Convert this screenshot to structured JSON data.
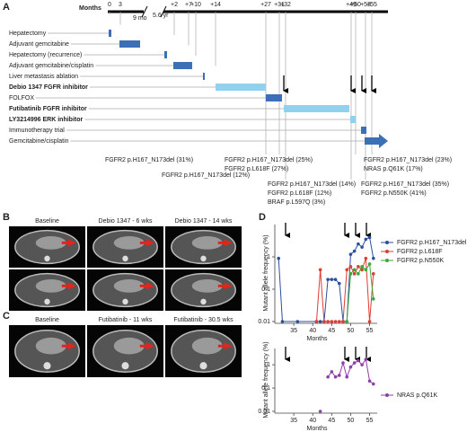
{
  "panel_a": {
    "label": "A",
    "axis_label": "Months",
    "ticks": [
      "0",
      "3",
      "+2",
      "+7",
      "+10",
      "+14",
      "+27",
      "+31",
      "+32",
      "+49",
      "+50",
      "+53",
      "+55"
    ],
    "gaps": [
      "9 mo",
      "5.6 yr"
    ],
    "treatments": [
      {
        "name": "Hepatectomy",
        "bold": false
      },
      {
        "name": "Adjuvant gemcitabine",
        "bold": false
      },
      {
        "name": "Hepatectomy (recurrence)",
        "bold": false
      },
      {
        "name": "Adjuvant gemcitabine/cisplatin",
        "bold": false
      },
      {
        "name": "Liver metastasis ablation",
        "bold": false
      },
      {
        "name": "Debio 1347 FGFR inhibitor",
        "bold": true
      },
      {
        "name": "FOLFOX",
        "bold": false
      },
      {
        "name": "Futibatinib FGFR inhibitor",
        "bold": true
      },
      {
        "name": "LY3214996 ERK inhibitor",
        "bold": true
      },
      {
        "name": "Immunotherapy trial",
        "bold": false
      },
      {
        "name": "Gemcitabine/cisplatin",
        "bold": false
      }
    ],
    "annotations": [
      [
        "FGFR2 p.H167_N173del (31%)"
      ],
      [
        "FGFR2 p.H167_N173del (12%)"
      ],
      [
        "FGFR2 p.H167_N173del (25%)",
        "FGFR2 p.L618F (27%)"
      ],
      [
        "FGFR2 p.H167_N173del (14%)",
        "FGFR2 p.L618F (12%)",
        "BRAF p.L597Q (3%)"
      ],
      [
        "FGFR2 p.H167_N173del (23%)",
        "NRAS p.Q61K (17%)"
      ],
      [
        "FGFR2 p.H167_N173del (35%)",
        "FGFR2 p.N550K (41%)"
      ]
    ]
  },
  "panel_b": {
    "label": "B",
    "captions": [
      "Baseline",
      "Debio 1347 - 6 wks",
      "Debio 1347 - 14 wks"
    ]
  },
  "panel_c": {
    "label": "C",
    "captions": [
      "Baseline",
      "Futibatinib - 11 wks",
      "Futibatinib - 30.5 wks"
    ]
  },
  "chart_data": [
    {
      "type": "line",
      "panel_label": "D",
      "y_label": "Mutant allele frequency (%)",
      "x_label": "Months",
      "log_y": true,
      "x": [
        31,
        32,
        36,
        41,
        42,
        43,
        44,
        45,
        46,
        47,
        48,
        49,
        50,
        51,
        52,
        53,
        54,
        55,
        56
      ],
      "xlim": [
        30,
        57
      ],
      "xticks": [
        35,
        40,
        45,
        50,
        55
      ],
      "ylim": [
        0.01,
        10
      ],
      "yticks": [
        0.01,
        0.1,
        1
      ],
      "series": [
        {
          "name": "FGFR2 p.H167_N173del",
          "color": "#2b4f9e",
          "values": [
            0.9,
            0.01,
            0.01,
            0.01,
            0.01,
            0.01,
            0.2,
            0.2,
            0.2,
            0.15,
            0.01,
            0.01,
            1.2,
            1.5,
            2.5,
            2,
            3.5,
            4,
            0.9
          ]
        },
        {
          "name": "FGFR2 p.L618F",
          "color": "#e03c31",
          "values": [
            null,
            null,
            null,
            0.01,
            0.4,
            0.01,
            0.01,
            0.01,
            0.01,
            0.01,
            0.01,
            0.4,
            0.5,
            0.3,
            0.5,
            0.4,
            0.9,
            0.01,
            0.3
          ]
        },
        {
          "name": "FGFR2 p.N550K",
          "color": "#3aa83a",
          "values": [
            null,
            null,
            null,
            null,
            null,
            null,
            null,
            null,
            null,
            null,
            null,
            0.01,
            0.3,
            0.4,
            0.3,
            0.5,
            0.4,
            0.6,
            0.05
          ]
        }
      ]
    },
    {
      "type": "line",
      "y_label": "Mutant allele frequency (%)",
      "x_label": "Months",
      "log_y": true,
      "x": [
        31,
        32,
        36,
        41,
        42,
        43,
        44,
        45,
        46,
        47,
        48,
        49,
        50,
        51,
        52,
        53,
        54,
        55,
        56
      ],
      "xlim": [
        30,
        57
      ],
      "xticks": [
        35,
        40,
        45,
        50,
        55
      ],
      "ylim": [
        0.01,
        5
      ],
      "yticks": [
        0.01,
        0.1,
        1
      ],
      "series": [
        {
          "name": "NRAS p.Q61K",
          "color": "#8e3fa8",
          "values": [
            null,
            null,
            null,
            null,
            0.01,
            null,
            0.3,
            0.5,
            0.3,
            0.35,
            1.2,
            0.3,
            0.8,
            1.2,
            1.5,
            1.0,
            1.7,
            0.2,
            0.15
          ]
        }
      ]
    }
  ]
}
